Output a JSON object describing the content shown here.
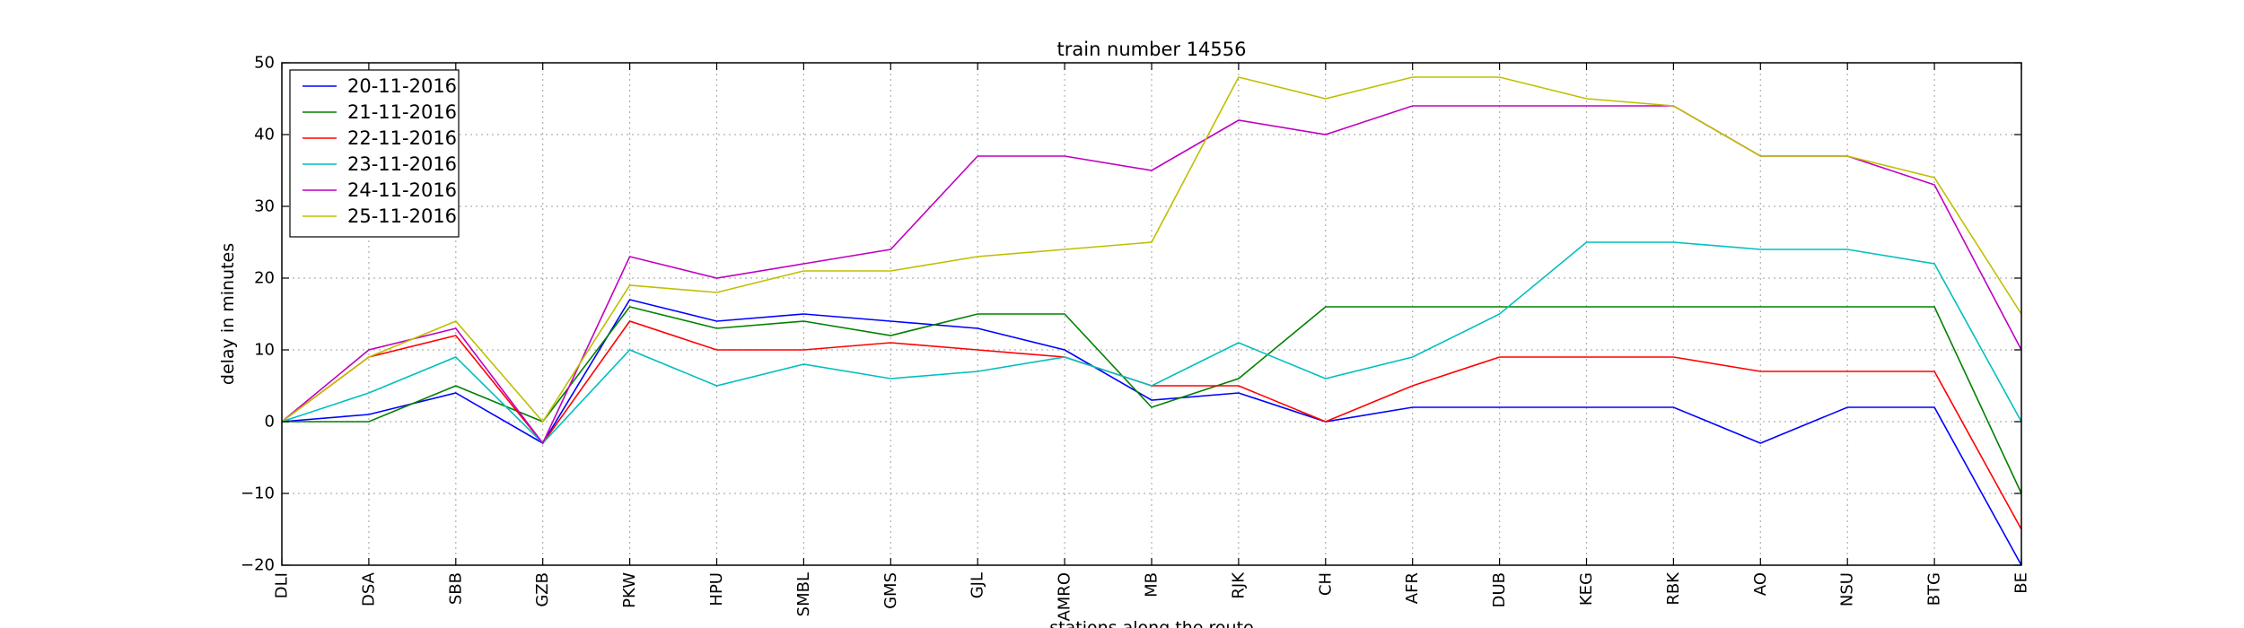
{
  "chart_data": {
    "type": "line",
    "title": "train number 14556",
    "xlabel": "stations along the route",
    "ylabel": "delay in minutes",
    "ylim": [
      -20,
      50
    ],
    "yticks": [
      -20,
      -10,
      0,
      10,
      20,
      30,
      40,
      50
    ],
    "grid": true,
    "legend_position": "top-left",
    "categories": [
      "DLI",
      "DSA",
      "SBB",
      "GZB",
      "PKW",
      "HPU",
      "SMBL",
      "GMS",
      "GJL",
      "AMRO",
      "MB",
      "RJK",
      "CH",
      "AFR",
      "DUB",
      "KEG",
      "RBK",
      "AO",
      "NSU",
      "BTG",
      "BE"
    ],
    "series": [
      {
        "name": "20-11-2016",
        "color": "#0000ff",
        "values": [
          0,
          1,
          4,
          -3,
          17,
          14,
          15,
          14,
          13,
          10,
          3,
          4,
          0,
          2,
          2,
          2,
          2,
          -3,
          2,
          2,
          -20
        ]
      },
      {
        "name": "21-11-2016",
        "color": "#008000",
        "values": [
          0,
          0,
          5,
          0,
          16,
          13,
          14,
          12,
          15,
          15,
          2,
          6,
          16,
          16,
          16,
          16,
          16,
          16,
          16,
          16,
          -10
        ]
      },
      {
        "name": "22-11-2016",
        "color": "#ff0000",
        "values": [
          0,
          9,
          12,
          -3,
          14,
          10,
          10,
          11,
          10,
          9,
          5,
          5,
          0,
          5,
          9,
          9,
          9,
          7,
          7,
          7,
          -15
        ]
      },
      {
        "name": "23-11-2016",
        "color": "#00bfbf",
        "values": [
          0,
          4,
          9,
          -3,
          10,
          5,
          8,
          6,
          7,
          9,
          5,
          11,
          6,
          9,
          15,
          25,
          25,
          24,
          24,
          22,
          0
        ]
      },
      {
        "name": "24-11-2016",
        "color": "#bf00bf",
        "values": [
          0,
          10,
          13,
          -3,
          23,
          20,
          22,
          24,
          37,
          37,
          35,
          42,
          40,
          44,
          44,
          44,
          44,
          37,
          37,
          33,
          10
        ]
      },
      {
        "name": "25-11-2016",
        "color": "#bfbf00",
        "values": [
          0,
          9,
          14,
          0,
          19,
          18,
          21,
          21,
          23,
          24,
          25,
          48,
          45,
          48,
          48,
          45,
          44,
          37,
          37,
          34,
          15
        ]
      }
    ]
  }
}
